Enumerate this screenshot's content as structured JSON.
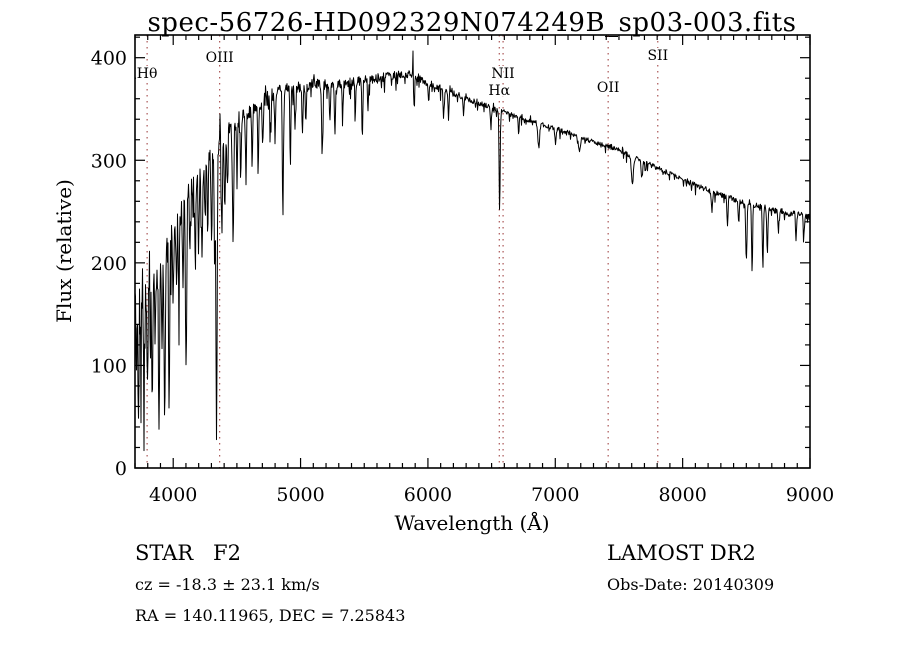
{
  "chart_data": {
    "type": "line",
    "title": "spec-56726-HD092329N074249B_sp03-003.fits",
    "xlabel": "Wavelength (Å)",
    "ylabel": "Flux (relative)",
    "xlim": [
      3700,
      9000
    ],
    "ylim": [
      0,
      420
    ],
    "x_major_ticks": [
      4000,
      5000,
      6000,
      7000,
      8000,
      9000
    ],
    "x_minor_step": 100,
    "y_major_ticks": [
      0,
      100,
      200,
      300,
      400
    ],
    "y_minor_step": 20,
    "grid": false,
    "line_color": "#000000",
    "marker_line_color": "#993333",
    "spectral_lines": [
      {
        "label": "Hθ",
        "wavelength": 3795,
        "label_y": 78
      },
      {
        "label": "OIII",
        "wavelength": 4365,
        "label_y": 62
      },
      {
        "label": "NII",
        "wavelength": 6590,
        "label_y": 78
      },
      {
        "label": "Hα",
        "wavelength": 6560,
        "label_y": 95
      },
      {
        "label": "OII",
        "wavelength": 7415,
        "label_y": 92
      },
      {
        "label": "SII",
        "wavelength": 7805,
        "label_y": 60
      }
    ],
    "continuum": [
      [
        3700,
        165
      ],
      [
        3780,
        180
      ],
      [
        3850,
        200
      ],
      [
        3920,
        212
      ],
      [
        3980,
        226
      ],
      [
        4050,
        252
      ],
      [
        4150,
        272
      ],
      [
        4250,
        298
      ],
      [
        4350,
        316
      ],
      [
        4450,
        332
      ],
      [
        4550,
        342
      ],
      [
        4650,
        352
      ],
      [
        4750,
        362
      ],
      [
        4850,
        368
      ],
      [
        4950,
        370
      ],
      [
        5100,
        374
      ],
      [
        5300,
        374
      ],
      [
        5500,
        378
      ],
      [
        5700,
        382
      ],
      [
        5850,
        384
      ],
      [
        5950,
        378
      ],
      [
        6100,
        370
      ],
      [
        6300,
        361
      ],
      [
        6500,
        351
      ],
      [
        6700,
        343
      ],
      [
        6900,
        335
      ],
      [
        7100,
        327
      ],
      [
        7300,
        318
      ],
      [
        7500,
        310
      ],
      [
        7700,
        298
      ],
      [
        7900,
        287
      ],
      [
        8100,
        276
      ],
      [
        8300,
        266
      ],
      [
        8500,
        258
      ],
      [
        8700,
        252
      ],
      [
        8850,
        248
      ],
      [
        9000,
        247
      ]
    ],
    "noise_amplitude": [
      [
        3700,
        58
      ],
      [
        3820,
        46
      ],
      [
        3900,
        40
      ],
      [
        4000,
        33
      ],
      [
        4150,
        27
      ],
      [
        4300,
        22
      ],
      [
        4450,
        18
      ],
      [
        4600,
        15
      ],
      [
        4800,
        12
      ],
      [
        5000,
        10
      ],
      [
        5300,
        9
      ],
      [
        5600,
        8
      ],
      [
        5900,
        7
      ],
      [
        6200,
        5.5
      ],
      [
        6600,
        4.5
      ],
      [
        7000,
        4
      ],
      [
        7400,
        4
      ],
      [
        7800,
        4.5
      ],
      [
        8300,
        5
      ],
      [
        8700,
        5.5
      ],
      [
        9000,
        6
      ]
    ],
    "absorption_lines": [
      [
        3712,
        70,
        4
      ],
      [
        3727,
        95,
        4
      ],
      [
        3745,
        60,
        4
      ],
      [
        3770,
        105,
        4
      ],
      [
        3798,
        125,
        4
      ],
      [
        3820,
        70,
        4
      ],
      [
        3835,
        155,
        4
      ],
      [
        3860,
        75,
        4
      ],
      [
        3889,
        165,
        5
      ],
      [
        3912,
        80,
        4
      ],
      [
        3933,
        185,
        5
      ],
      [
        3968,
        172,
        5
      ],
      [
        4000,
        70,
        4
      ],
      [
        4026,
        62,
        4
      ],
      [
        4045,
        82,
        4
      ],
      [
        4077,
        72,
        4
      ],
      [
        4101,
        178,
        5
      ],
      [
        4132,
        62,
        4
      ],
      [
        4172,
        70,
        4
      ],
      [
        4200,
        76,
        4
      ],
      [
        4226,
        86,
        4
      ],
      [
        4250,
        60,
        4
      ],
      [
        4271,
        66,
        4
      ],
      [
        4300,
        80,
        4
      ],
      [
        4325,
        92,
        4
      ],
      [
        4340,
        288,
        5
      ],
      [
        4383,
        96,
        4
      ],
      [
        4405,
        72,
        4
      ],
      [
        4425,
        56,
        4
      ],
      [
        4470,
        112,
        5
      ],
      [
        4501,
        62,
        4
      ],
      [
        4530,
        56,
        4
      ],
      [
        4570,
        46,
        4
      ],
      [
        4620,
        50,
        4
      ],
      [
        4668,
        60,
        4
      ],
      [
        4702,
        46,
        4
      ],
      [
        4762,
        42,
        4
      ],
      [
        4800,
        46,
        4
      ],
      [
        4861,
        124,
        4
      ],
      [
        4920,
        56,
        4
      ],
      [
        4957,
        42,
        4
      ],
      [
        5015,
        46,
        4
      ],
      [
        5042,
        36,
        4
      ],
      [
        5170,
        68,
        5
      ],
      [
        5230,
        36,
        4
      ],
      [
        5270,
        46,
        4
      ],
      [
        5330,
        36,
        4
      ],
      [
        5430,
        32,
        4
      ],
      [
        5485,
        58,
        4
      ],
      [
        5530,
        30,
        4
      ],
      [
        5890,
        30,
        5
      ],
      [
        6005,
        20,
        4
      ],
      [
        6122,
        22,
        4
      ],
      [
        6162,
        20,
        4
      ],
      [
        6280,
        16,
        4
      ],
      [
        6495,
        20,
        4
      ],
      [
        6563,
        99,
        4
      ],
      [
        6712,
        16,
        4
      ],
      [
        6870,
        24,
        7
      ],
      [
        7002,
        14,
        5
      ],
      [
        7190,
        16,
        7
      ],
      [
        7605,
        26,
        8
      ],
      [
        7682,
        16,
        5
      ],
      [
        8230,
        18,
        5
      ],
      [
        8352,
        28,
        4
      ],
      [
        8440,
        22,
        4
      ],
      [
        8500,
        58,
        5
      ],
      [
        8545,
        64,
        4
      ],
      [
        8630,
        60,
        4
      ],
      [
        8665,
        44,
        4
      ],
      [
        8752,
        20,
        4
      ],
      [
        8890,
        26,
        4
      ],
      [
        8952,
        22,
        4
      ]
    ],
    "emission_lines": [
      [
        5883,
        32,
        2.5
      ]
    ],
    "seed": 42
  },
  "footer": {
    "class_label": "STAR",
    "subclass": "F2",
    "survey": "LAMOST DR2",
    "cz": "cz = -18.3 ± 23.1 km/s",
    "obs_date": "Obs-Date: 20140309",
    "radec": "RA = 140.11965, DEC =  7.25843"
  }
}
